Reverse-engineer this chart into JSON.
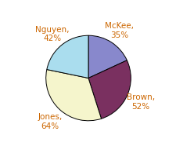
{
  "labels": [
    "McKee,\n35%",
    "Brown,\n52%",
    "Jones,\n64%",
    "Nguyen,\n42%"
  ],
  "values": [
    35,
    52,
    64,
    42
  ],
  "colors": [
    "#8888cc",
    "#7a3060",
    "#f5f5cc",
    "#aaddee"
  ],
  "label_color": "#cc6600",
  "figsize": [
    2.26,
    2.01
  ],
  "dpi": 100,
  "startangle": 90,
  "labeldistance": 1.35,
  "fontsize": 7.5
}
